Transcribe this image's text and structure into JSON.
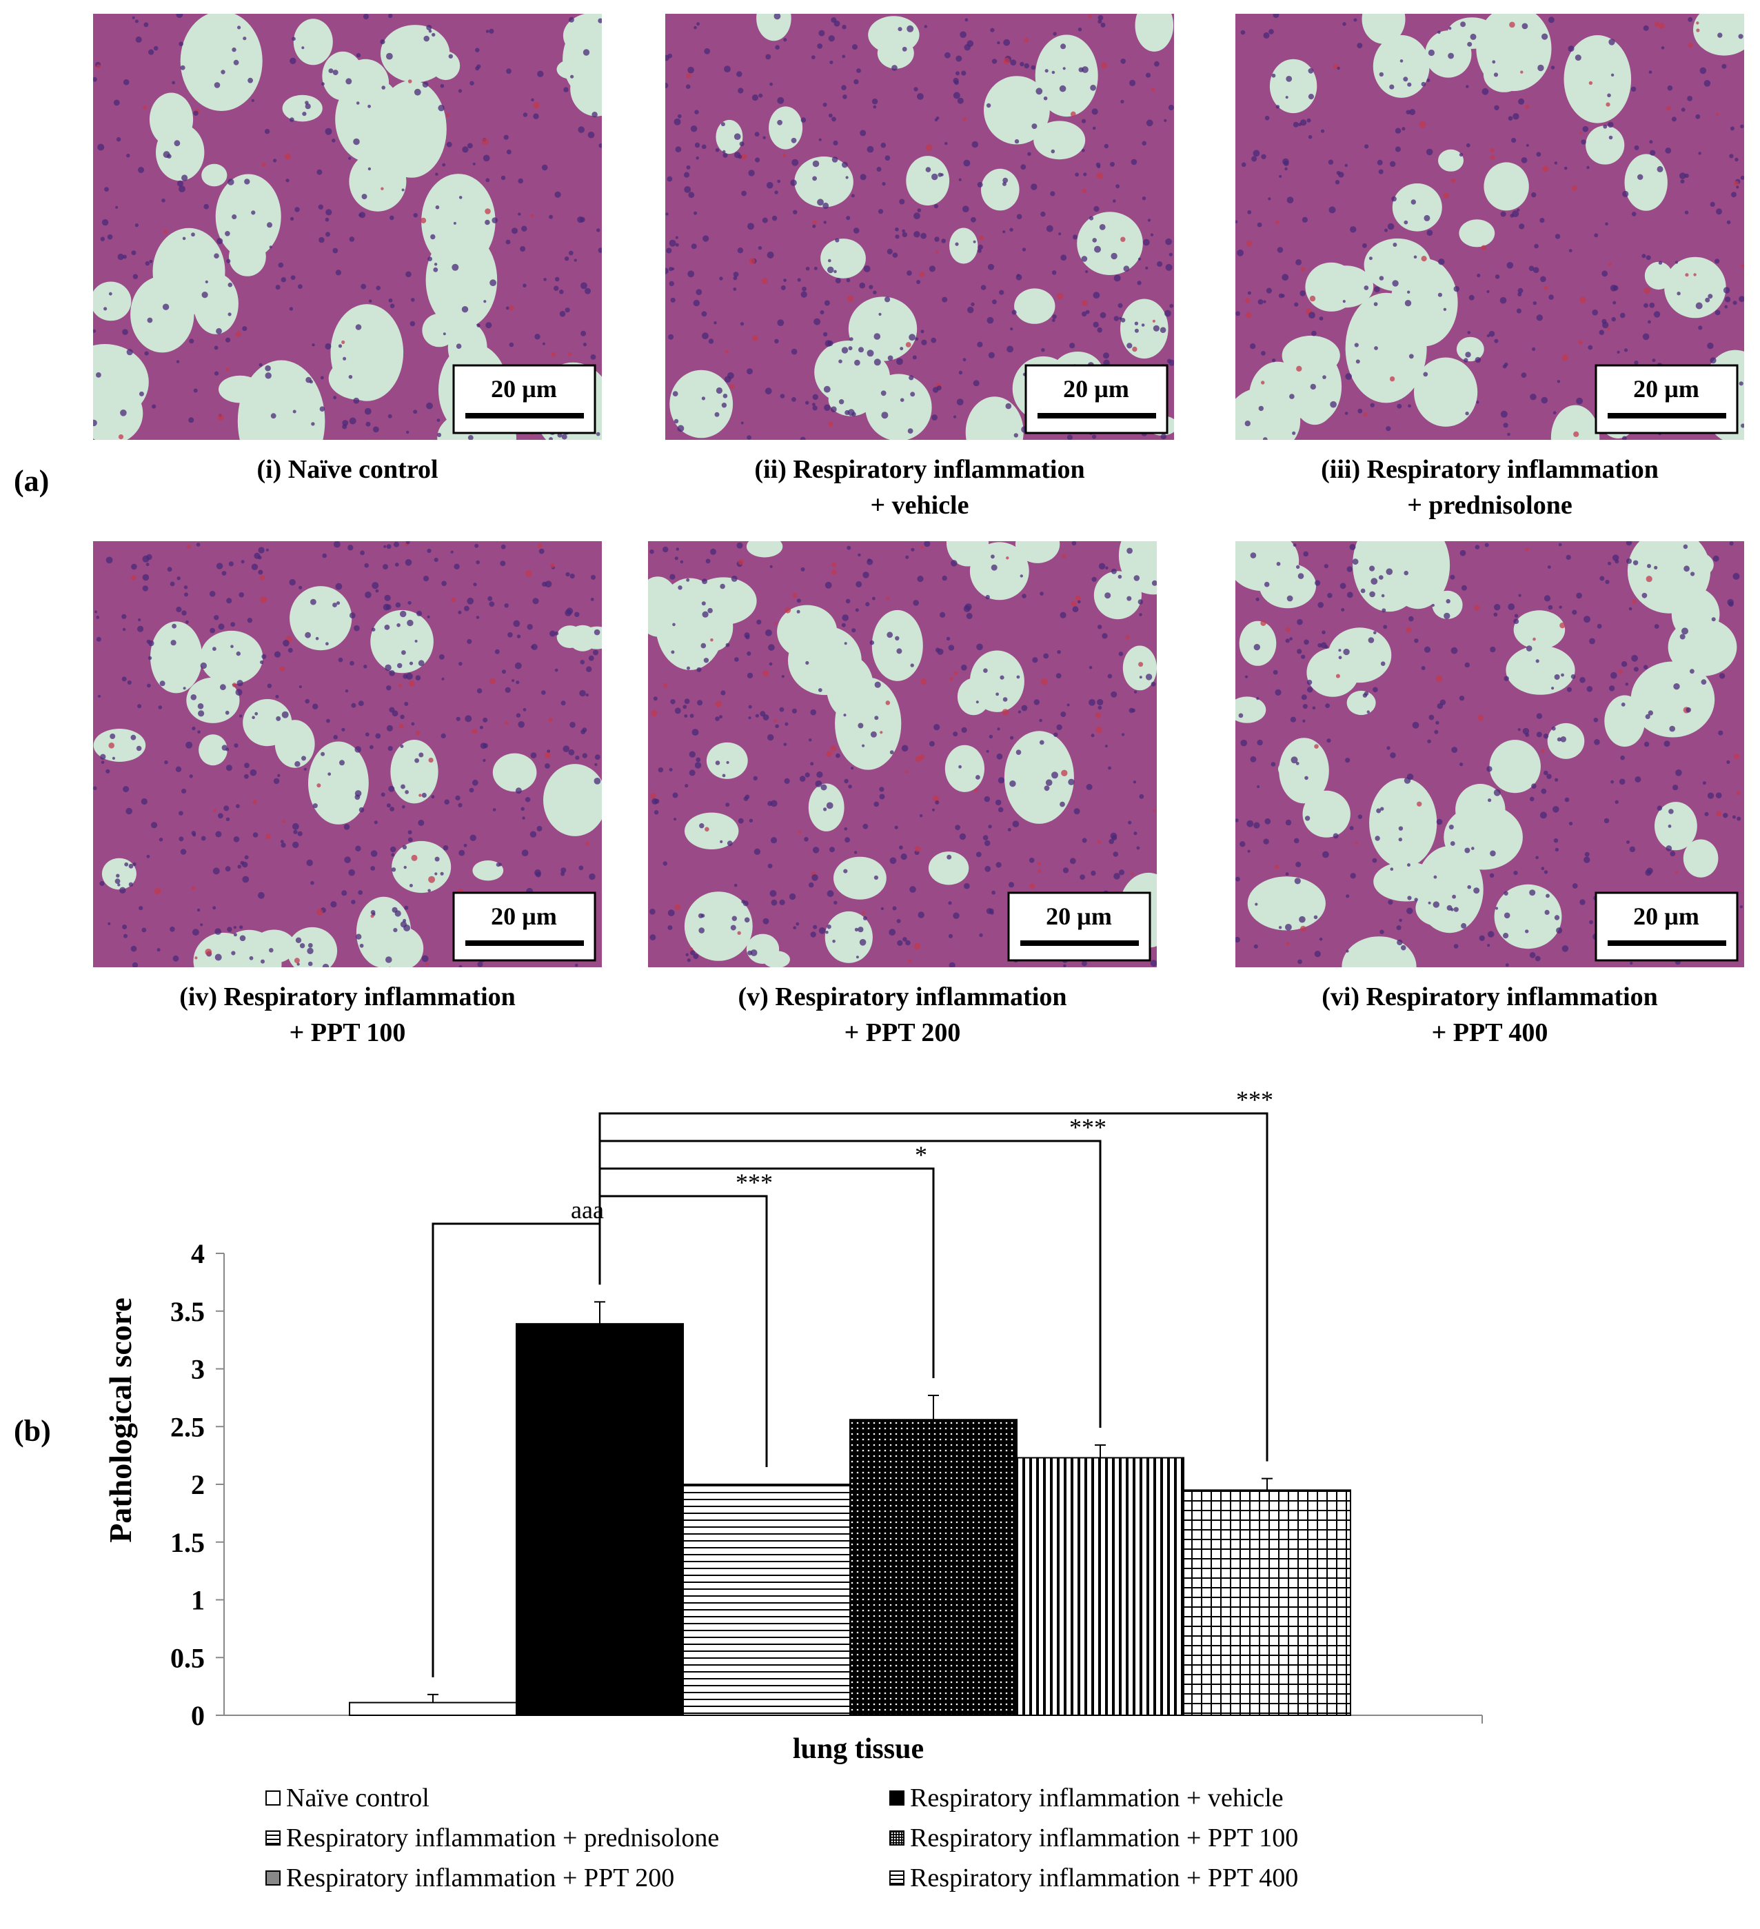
{
  "panels": {
    "a_label": "(a)",
    "b_label": "(b)"
  },
  "micrographs": [
    {
      "scale_bar": "20 µm",
      "caption": [
        "(i) Naïve control"
      ],
      "density": 0.32
    },
    {
      "scale_bar": "20 µm",
      "caption": [
        "(ii) Respiratory inflammation",
        "+ vehicle"
      ],
      "density": 0.62
    },
    {
      "scale_bar": "20 µm",
      "caption": [
        "(iii) Respiratory inflammation",
        "+ prednisolone"
      ],
      "density": 0.4
    },
    {
      "scale_bar": "20 µm",
      "caption": [
        "(iv) Respiratory inflammation",
        "+ PPT 100"
      ],
      "density": 0.66
    },
    {
      "scale_bar": "20 µm",
      "caption": [
        "(v) Respiratory inflammation",
        "+ PPT 200"
      ],
      "density": 0.55
    },
    {
      "scale_bar": "20 µm",
      "caption": [
        "(vi) Respiratory inflammation",
        "+ PPT 400"
      ],
      "density": 0.42
    }
  ],
  "colors": {
    "tissue": "#9a4a86",
    "nuclei": "#4a2a78",
    "airspace": "#cfe6d6",
    "blood": "#c0394f"
  },
  "chart_data": {
    "type": "bar",
    "xlabel": "lung tissue",
    "ylabel": "Pathological score",
    "ylim": [
      0,
      4
    ],
    "yticks": [
      "0",
      "0.5",
      "1",
      "1.5",
      "2",
      "2.5",
      "3",
      "3.5",
      "4"
    ],
    "series": [
      {
        "name": "Naïve control",
        "value": 0.11,
        "error": 0.07,
        "pattern": "white"
      },
      {
        "name": "Respiratory inflammation + vehicle",
        "value": 3.39,
        "error": 0.19,
        "pattern": "black"
      },
      {
        "name": "Respiratory inflammation + prednisolone",
        "value": 2.0,
        "error": 0.0,
        "pattern": "hlines"
      },
      {
        "name": "Respiratory inflammation + PPT 100",
        "value": 2.56,
        "error": 0.21,
        "pattern": "dots"
      },
      {
        "name": "Respiratory inflammation + PPT 200",
        "value": 2.23,
        "error": 0.11,
        "pattern": "vlines"
      },
      {
        "name": "Respiratory inflammation + PPT 400",
        "value": 1.95,
        "error": 0.1,
        "pattern": "grid"
      }
    ],
    "annotations": [
      {
        "from": 0,
        "to": 1,
        "label": "aaa"
      },
      {
        "from": 1,
        "to": 2,
        "label": "***"
      },
      {
        "from": 1,
        "to": 3,
        "label": "*"
      },
      {
        "from": 1,
        "to": 4,
        "label": "***"
      },
      {
        "from": 1,
        "to": 5,
        "label": "***"
      }
    ]
  }
}
